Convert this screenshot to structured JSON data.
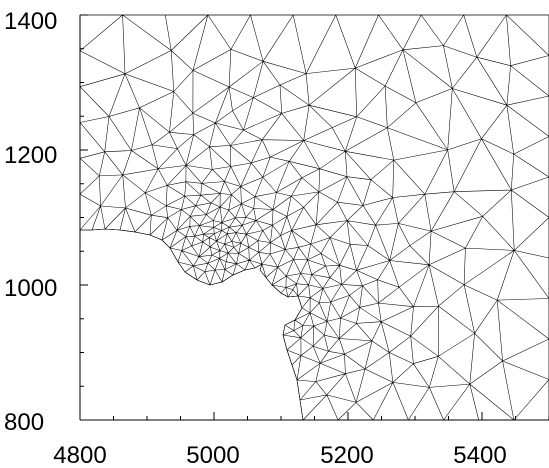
{
  "chart_data": {
    "type": "scatter",
    "title": "",
    "xlabel": "",
    "ylabel": "",
    "xlim": [
      4800,
      5500
    ],
    "ylim": [
      800,
      1400
    ],
    "x_ticks": [
      "4800",
      "5000",
      "5200",
      "5400"
    ],
    "y_ticks": [
      "800",
      "1000",
      "1200",
      "1400"
    ],
    "grid": false,
    "mesh": {
      "style": "triangular-mesh-edges",
      "colors": {
        "edge": "#000000"
      }
    }
  }
}
